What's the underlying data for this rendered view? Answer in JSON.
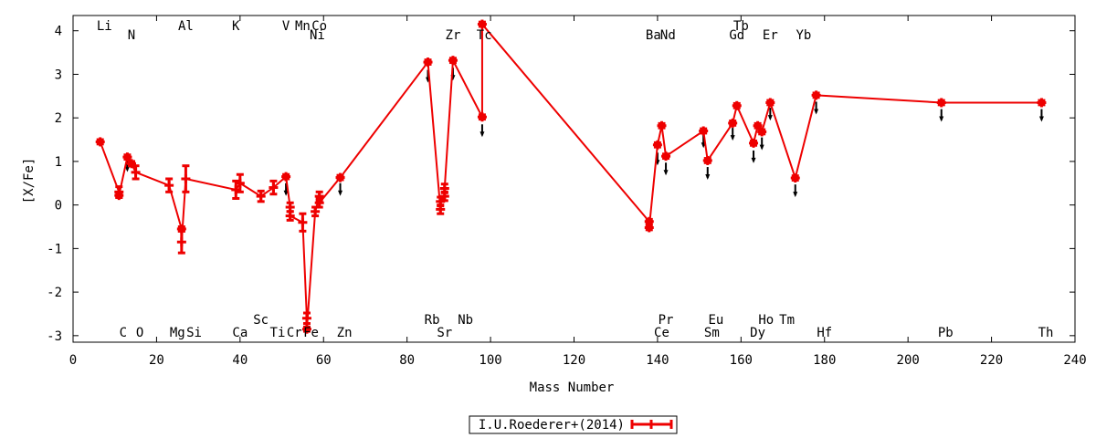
{
  "chart_data": {
    "type": "line",
    "title": "",
    "xlabel": "Mass Number",
    "ylabel": "[X/Fe]",
    "xlim": [
      0,
      240
    ],
    "ylim": [
      -3.15,
      4.35
    ],
    "x_ticks": [
      0,
      20,
      40,
      60,
      80,
      100,
      120,
      140,
      160,
      180,
      200,
      220,
      240
    ],
    "y_ticks": [
      -3,
      -2,
      -1,
      0,
      1,
      2,
      3,
      4
    ],
    "grid": false,
    "legend_position": "bottom-center",
    "series": [
      {
        "name": "I.U.Roederer+(2014)",
        "color": "#ee0000",
        "points": [
          {
            "x": 6.5,
            "y": 1.45,
            "err": 0.05
          },
          {
            "x": 11,
            "y": 0.3,
            "err": 0.12
          },
          {
            "x": 11,
            "y": 0.22,
            "err": 0.05
          },
          {
            "x": 13,
            "y": 1.1,
            "err": 0.05
          },
          {
            "x": 14,
            "y": 0.95,
            "err": 0.05
          },
          {
            "x": 15,
            "y": 0.75,
            "err": 0.15
          },
          {
            "x": 23,
            "y": 0.45,
            "err": 0.15
          },
          {
            "x": 26,
            "y": -0.55,
            "err": 0.05
          },
          {
            "x": 26,
            "y": -0.85,
            "err": 0.25
          },
          {
            "x": 27,
            "y": 0.6,
            "err": 0.3
          },
          {
            "x": 39,
            "y": 0.35,
            "err": 0.2
          },
          {
            "x": 40,
            "y": 0.5,
            "err": 0.2
          },
          {
            "x": 45,
            "y": 0.2,
            "err": 0.12
          },
          {
            "x": 48,
            "y": 0.4,
            "err": 0.15
          },
          {
            "x": 51,
            "y": 0.65,
            "err": 0.05
          },
          {
            "x": 52,
            "y": -0.05,
            "err": 0.1
          },
          {
            "x": 52,
            "y": -0.25,
            "err": 0.1
          },
          {
            "x": 55,
            "y": -0.4,
            "err": 0.2
          },
          {
            "x": 56,
            "y": -2.6,
            "err": 0.12
          },
          {
            "x": 56,
            "y": -2.85,
            "err": 0.05
          },
          {
            "x": 58,
            "y": -0.15,
            "err": 0.1
          },
          {
            "x": 59,
            "y": 0.2,
            "err": 0.1
          },
          {
            "x": 59,
            "y": 0.05,
            "err": 0.1
          },
          {
            "x": 64,
            "y": 0.63,
            "err": 0.05
          },
          {
            "x": 85,
            "y": 3.28,
            "err": 0.05
          },
          {
            "x": 88,
            "y": -0.1,
            "err": 0.1
          },
          {
            "x": 88,
            "y": 0.08,
            "err": 0.1
          },
          {
            "x": 89,
            "y": 0.2,
            "err": 0.1
          },
          {
            "x": 89,
            "y": 0.38,
            "err": 0.1
          },
          {
            "x": 91,
            "y": 3.32,
            "err": 0.05
          },
          {
            "x": 98,
            "y": 2.02,
            "err": 0.05
          },
          {
            "x": 98,
            "y": 4.15,
            "err": 0.05
          },
          {
            "x": 138,
            "y": -0.38,
            "err": 0.05
          },
          {
            "x": 138,
            "y": -0.52,
            "err": 0.05
          },
          {
            "x": 140,
            "y": 1.38,
            "err": 0.05
          },
          {
            "x": 141,
            "y": 1.82,
            "err": 0.05
          },
          {
            "x": 142,
            "y": 1.12,
            "err": 0.05
          },
          {
            "x": 151,
            "y": 1.7,
            "err": 0.05
          },
          {
            "x": 152,
            "y": 1.02,
            "err": 0.05
          },
          {
            "x": 158,
            "y": 1.88,
            "err": 0.05
          },
          {
            "x": 159,
            "y": 2.28,
            "err": 0.05
          },
          {
            "x": 163,
            "y": 1.42,
            "err": 0.05
          },
          {
            "x": 164,
            "y": 1.82,
            "err": 0.05
          },
          {
            "x": 165,
            "y": 1.68,
            "err": 0.05
          },
          {
            "x": 167,
            "y": 2.35,
            "err": 0.05
          },
          {
            "x": 173,
            "y": 0.62,
            "err": 0.05
          },
          {
            "x": 178,
            "y": 2.52,
            "err": 0.05
          },
          {
            "x": 208,
            "y": 2.35,
            "err": 0.05
          },
          {
            "x": 232,
            "y": 2.35,
            "err": 0.05
          }
        ]
      }
    ],
    "upper_limits": [
      {
        "x": 13,
        "y": 0.8
      },
      {
        "x": 51,
        "y": 0.25
      },
      {
        "x": 64,
        "y": 0.25
      },
      {
        "x": 85,
        "y": 2.85
      },
      {
        "x": 91,
        "y": 2.9
      },
      {
        "x": 98,
        "y": 1.6
      },
      {
        "x": 140,
        "y": 0.95
      },
      {
        "x": 142,
        "y": 0.72
      },
      {
        "x": 151,
        "y": 1.35
      },
      {
        "x": 152,
        "y": 0.62
      },
      {
        "x": 158,
        "y": 1.52
      },
      {
        "x": 163,
        "y": 1.0
      },
      {
        "x": 165,
        "y": 1.3
      },
      {
        "x": 167,
        "y": 1.98
      },
      {
        "x": 173,
        "y": 0.22
      },
      {
        "x": 178,
        "y": 2.12
      },
      {
        "x": 208,
        "y": 1.95
      },
      {
        "x": 232,
        "y": 1.95
      }
    ],
    "element_labels": [
      {
        "text": "Li",
        "x": 7.5,
        "row": "top1"
      },
      {
        "text": "N",
        "x": 14,
        "row": "top2"
      },
      {
        "text": "Al",
        "x": 27,
        "row": "top1"
      },
      {
        "text": "K",
        "x": 39,
        "row": "top1"
      },
      {
        "text": "V",
        "x": 51,
        "row": "top1"
      },
      {
        "text": "Mn",
        "x": 55,
        "row": "top1"
      },
      {
        "text": "Co",
        "x": 59,
        "row": "top1"
      },
      {
        "text": "Ni",
        "x": 58.5,
        "row": "top2"
      },
      {
        "text": "Zr",
        "x": 91,
        "row": "top2"
      },
      {
        "text": "Tc",
        "x": 98.5,
        "row": "top2"
      },
      {
        "text": "Ba",
        "x": 139,
        "row": "top2"
      },
      {
        "text": "Nd",
        "x": 142.5,
        "row": "top2"
      },
      {
        "text": "Tb",
        "x": 160,
        "row": "top1"
      },
      {
        "text": "Gd",
        "x": 159,
        "row": "top2"
      },
      {
        "text": "Er",
        "x": 167,
        "row": "top2"
      },
      {
        "text": "Yb",
        "x": 175,
        "row": "top2"
      },
      {
        "text": "Sc",
        "x": 45,
        "row": "bot1"
      },
      {
        "text": "Rb",
        "x": 86,
        "row": "bot1"
      },
      {
        "text": "Nb",
        "x": 94,
        "row": "bot1"
      },
      {
        "text": "Pr",
        "x": 142,
        "row": "bot1"
      },
      {
        "text": "Eu",
        "x": 154,
        "row": "bot1"
      },
      {
        "text": "Ho",
        "x": 166,
        "row": "bot1"
      },
      {
        "text": "Tm",
        "x": 171,
        "row": "bot1"
      },
      {
        "text": "C",
        "x": 12,
        "row": "bot2"
      },
      {
        "text": "O",
        "x": 16,
        "row": "bot2"
      },
      {
        "text": "Mg",
        "x": 25,
        "row": "bot2"
      },
      {
        "text": "Si",
        "x": 29,
        "row": "bot2"
      },
      {
        "text": "Ca",
        "x": 40,
        "row": "bot2"
      },
      {
        "text": "Ti",
        "x": 49,
        "row": "bot2"
      },
      {
        "text": "Cr",
        "x": 53,
        "row": "bot2"
      },
      {
        "text": "Fe",
        "x": 57,
        "row": "bot2"
      },
      {
        "text": "Zn",
        "x": 65,
        "row": "bot2"
      },
      {
        "text": "Sr",
        "x": 89,
        "row": "bot2"
      },
      {
        "text": "Ce",
        "x": 141,
        "row": "bot2"
      },
      {
        "text": "Sm",
        "x": 153,
        "row": "bot2"
      },
      {
        "text": "Dy",
        "x": 164,
        "row": "bot2"
      },
      {
        "text": "Hf",
        "x": 180,
        "row": "bot2"
      },
      {
        "text": "Pb",
        "x": 209,
        "row": "bot2"
      },
      {
        "text": "Th",
        "x": 233,
        "row": "bot2"
      }
    ]
  }
}
